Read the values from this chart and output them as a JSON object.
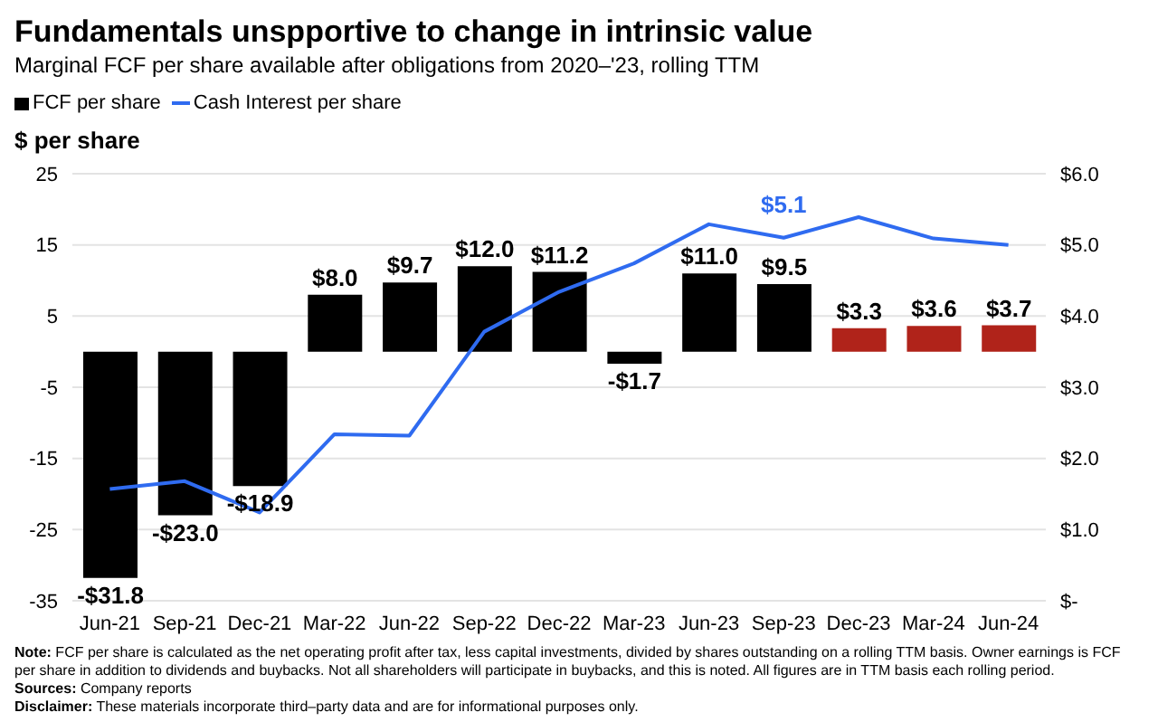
{
  "chart_data": {
    "type": "bar",
    "title": "Fundamentals unspportive to change in intrinsic value",
    "subtitle": "Marginal FCF per share available after obligations from 2020–'23, rolling TTM",
    "ylabel": "$ per share",
    "categories": [
      "Jun-21",
      "Sep-21",
      "Dec-21",
      "Mar-22",
      "Jun-22",
      "Sep-22",
      "Dec-22",
      "Mar-23",
      "Jun-23",
      "Sep-23",
      "Dec-23",
      "Mar-24",
      "Jun-24"
    ],
    "series": [
      {
        "name": "FCF per share",
        "color": "#000000",
        "colors": [
          "#000000",
          "#000000",
          "#000000",
          "#000000",
          "#000000",
          "#000000",
          "#000000",
          "#000000",
          "#000000",
          "#000000",
          "#b0231a",
          "#b0231a",
          "#b0231a"
        ],
        "values": [
          -31.8,
          -23.0,
          -18.9,
          8.0,
          9.7,
          12.0,
          11.2,
          -1.7,
          11.0,
          9.5,
          3.3,
          3.6,
          3.7
        ],
        "value_labels": [
          "-$31.8",
          "-$23.0",
          "-$18.9",
          "$8.0",
          "$9.7",
          "$12.0",
          "$11.2",
          "-$1.7",
          "$11.0",
          "$9.5",
          "$3.3",
          "$3.6",
          "$3.7"
        ]
      },
      {
        "name": "Cash Interest per share",
        "type": "line",
        "axis": "y2",
        "color": "#2f6bf0",
        "values": [
          1.57,
          1.68,
          1.24,
          2.34,
          2.32,
          3.78,
          4.34,
          4.74,
          5.29,
          5.1,
          5.39,
          5.09,
          5.0
        ],
        "value_labels": [
          null,
          null,
          null,
          null,
          null,
          null,
          null,
          null,
          null,
          "$5.1",
          null,
          null,
          null
        ]
      }
    ],
    "ylim": [
      -35,
      25
    ],
    "yticks": [
      -35,
      -25,
      -15,
      -5,
      5,
      15,
      25
    ],
    "y2lim": [
      0,
      6
    ],
    "y2ticks": [
      {
        "value": 0,
        "label": "$-"
      },
      {
        "value": 1,
        "label": "$1.0"
      },
      {
        "value": 2,
        "label": "$2.0"
      },
      {
        "value": 3,
        "label": "$3.0"
      },
      {
        "value": 4,
        "label": "$4.0"
      },
      {
        "value": 5,
        "label": "$5.0"
      },
      {
        "value": 6,
        "label": "$6.0"
      }
    ],
    "grid": "y",
    "legend": "top left",
    "annotations": [
      "Note: FCF per share is calculated as the net operating profit after tax, less capital investments, divided by shares outstanding on a rolling TTM basis. Owner earnings is FCF per share in addition to dividends and buybacks. Not all shareholders will participate in buybacks, and this is noted. All figures are in TTM basis each rolling period.",
      "Sources: Company reports",
      "Disclaimer: These materials incorporate third–party data and are for informational purposes only."
    ]
  }
}
